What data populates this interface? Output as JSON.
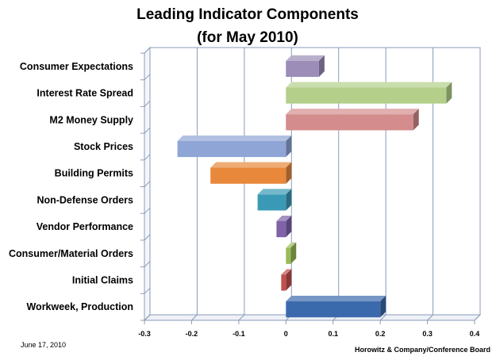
{
  "chart_data": {
    "type": "bar",
    "orientation": "horizontal",
    "title_line1": "Leading Indicator Components",
    "title_line2": "(for May 2010)",
    "categories": [
      "Consumer Expectations",
      "Interest Rate Spread",
      "M2 Money Supply",
      "Stock Prices",
      "Building Permits",
      "Non-Defense Orders",
      "Vendor Performance",
      "Consumer/Material Orders",
      "Initial Claims",
      "Workweek, Production"
    ],
    "values": [
      0.07,
      0.34,
      0.27,
      -0.23,
      -0.16,
      -0.06,
      -0.02,
      0.01,
      -0.01,
      0.2
    ],
    "colors": [
      "#9b8cb8",
      "#b3cf8a",
      "#d48c8c",
      "#8ea5d6",
      "#e8883a",
      "#3a9ab5",
      "#7f62a8",
      "#9abb59",
      "#c0504d",
      "#3b6aac"
    ],
    "xlim": [
      -0.3,
      0.4
    ],
    "xticks": [
      -0.3,
      -0.2,
      -0.1,
      0,
      0.1,
      0.2,
      0.3,
      0.4
    ],
    "tick_labels": [
      "-0.3",
      "-0.2",
      "-0.1",
      "0",
      "0.1",
      "0.2",
      "0.3",
      "0.4"
    ],
    "grid": true,
    "legend": "none"
  },
  "footer": {
    "date": "June 17, 2010",
    "source": "Horowitz & Company/Conference Board"
  }
}
